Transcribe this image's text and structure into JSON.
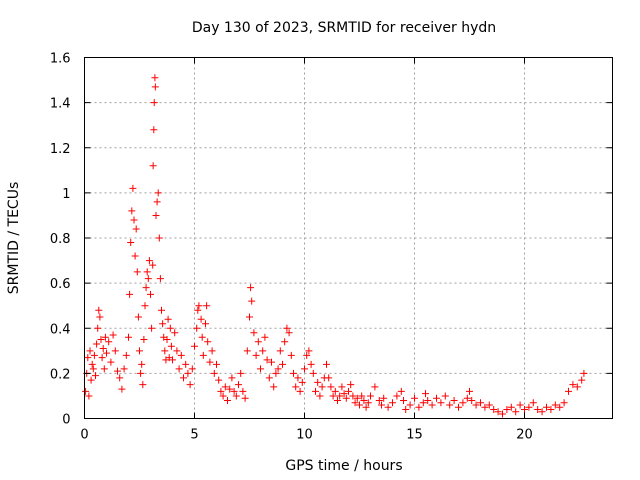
{
  "chart_data": {
    "type": "scatter",
    "title": "Day 130 of 2023, SRMTID for receiver hydn",
    "xlabel": "GPS time / hours",
    "ylabel": "SRMTID / TECUs",
    "xlim": [
      0,
      24
    ],
    "ylim": [
      0,
      1.6
    ],
    "xticks": [
      "0",
      "5",
      "10",
      "15",
      "20"
    ],
    "yticks": [
      "0",
      "0.2",
      "0.4",
      "0.6",
      "0.8",
      "1",
      "1.2",
      "1.4",
      "1.6"
    ],
    "grid": true,
    "marker": "plus",
    "color": "#ff0000",
    "series": [
      {
        "name": "SRMTID",
        "points": [
          [
            0.05,
            0.12
          ],
          [
            0.1,
            0.2
          ],
          [
            0.15,
            0.27
          ],
          [
            0.2,
            0.1
          ],
          [
            0.25,
            0.3
          ],
          [
            0.3,
            0.17
          ],
          [
            0.35,
            0.24
          ],
          [
            0.4,
            0.22
          ],
          [
            0.45,
            0.28
          ],
          [
            0.5,
            0.19
          ],
          [
            0.55,
            0.33
          ],
          [
            0.6,
            0.4
          ],
          [
            0.65,
            0.48
          ],
          [
            0.7,
            0.45
          ],
          [
            0.75,
            0.35
          ],
          [
            0.8,
            0.27
          ],
          [
            0.85,
            0.31
          ],
          [
            0.9,
            0.22
          ],
          [
            0.95,
            0.36
          ],
          [
            1.0,
            0.29
          ],
          [
            1.1,
            0.34
          ],
          [
            1.2,
            0.25
          ],
          [
            1.3,
            0.37
          ],
          [
            1.4,
            0.3
          ],
          [
            1.5,
            0.21
          ],
          [
            1.6,
            0.18
          ],
          [
            1.7,
            0.13
          ],
          [
            1.8,
            0.22
          ],
          [
            1.9,
            0.28
          ],
          [
            2.0,
            0.36
          ],
          [
            2.05,
            0.55
          ],
          [
            2.1,
            0.78
          ],
          [
            2.15,
            0.92
          ],
          [
            2.2,
            1.02
          ],
          [
            2.25,
            0.88
          ],
          [
            2.3,
            0.72
          ],
          [
            2.35,
            0.84
          ],
          [
            2.4,
            0.65
          ],
          [
            2.45,
            0.45
          ],
          [
            2.5,
            0.3
          ],
          [
            2.55,
            0.2
          ],
          [
            2.6,
            0.24
          ],
          [
            2.65,
            0.15
          ],
          [
            2.7,
            0.35
          ],
          [
            2.75,
            0.5
          ],
          [
            2.8,
            0.58
          ],
          [
            2.85,
            0.65
          ],
          [
            2.9,
            0.62
          ],
          [
            2.95,
            0.7
          ],
          [
            3.0,
            0.55
          ],
          [
            3.05,
            0.4
          ],
          [
            3.1,
            0.68
          ],
          [
            3.12,
            1.12
          ],
          [
            3.15,
            1.28
          ],
          [
            3.17,
            1.4
          ],
          [
            3.2,
            1.51
          ],
          [
            3.22,
            1.47
          ],
          [
            3.25,
            0.9
          ],
          [
            3.3,
            0.96
          ],
          [
            3.35,
            1.0
          ],
          [
            3.4,
            0.8
          ],
          [
            3.45,
            0.62
          ],
          [
            3.5,
            0.48
          ],
          [
            3.55,
            0.42
          ],
          [
            3.6,
            0.36
          ],
          [
            3.65,
            0.3
          ],
          [
            3.7,
            0.26
          ],
          [
            3.75,
            0.35
          ],
          [
            3.8,
            0.44
          ],
          [
            3.85,
            0.27
          ],
          [
            3.9,
            0.4
          ],
          [
            3.95,
            0.32
          ],
          [
            4.0,
            0.26
          ],
          [
            4.1,
            0.38
          ],
          [
            4.2,
            0.3
          ],
          [
            4.3,
            0.22
          ],
          [
            4.4,
            0.28
          ],
          [
            4.5,
            0.18
          ],
          [
            4.6,
            0.24
          ],
          [
            4.7,
            0.2
          ],
          [
            4.8,
            0.15
          ],
          [
            4.9,
            0.22
          ],
          [
            5.0,
            0.32
          ],
          [
            5.1,
            0.4
          ],
          [
            5.15,
            0.48
          ],
          [
            5.2,
            0.5
          ],
          [
            5.3,
            0.44
          ],
          [
            5.35,
            0.36
          ],
          [
            5.4,
            0.28
          ],
          [
            5.5,
            0.42
          ],
          [
            5.55,
            0.5
          ],
          [
            5.6,
            0.34
          ],
          [
            5.7,
            0.25
          ],
          [
            5.8,
            0.3
          ],
          [
            5.9,
            0.2
          ],
          [
            6.0,
            0.24
          ],
          [
            6.1,
            0.17
          ],
          [
            6.2,
            0.12
          ],
          [
            6.3,
            0.1
          ],
          [
            6.4,
            0.14
          ],
          [
            6.5,
            0.08
          ],
          [
            6.6,
            0.13
          ],
          [
            6.7,
            0.18
          ],
          [
            6.8,
            0.12
          ],
          [
            6.9,
            0.1
          ],
          [
            7.0,
            0.15
          ],
          [
            7.1,
            0.2
          ],
          [
            7.2,
            0.12
          ],
          [
            7.3,
            0.09
          ],
          [
            7.4,
            0.3
          ],
          [
            7.5,
            0.45
          ],
          [
            7.55,
            0.58
          ],
          [
            7.6,
            0.52
          ],
          [
            7.7,
            0.38
          ],
          [
            7.8,
            0.28
          ],
          [
            7.9,
            0.34
          ],
          [
            8.0,
            0.22
          ],
          [
            8.1,
            0.3
          ],
          [
            8.2,
            0.36
          ],
          [
            8.3,
            0.26
          ],
          [
            8.4,
            0.18
          ],
          [
            8.5,
            0.25
          ],
          [
            8.6,
            0.14
          ],
          [
            8.7,
            0.2
          ],
          [
            8.8,
            0.22
          ],
          [
            8.9,
            0.3
          ],
          [
            9.0,
            0.24
          ],
          [
            9.1,
            0.34
          ],
          [
            9.2,
            0.4
          ],
          [
            9.3,
            0.38
          ],
          [
            9.4,
            0.28
          ],
          [
            9.5,
            0.2
          ],
          [
            9.6,
            0.14
          ],
          [
            9.7,
            0.18
          ],
          [
            9.8,
            0.12
          ],
          [
            9.9,
            0.16
          ],
          [
            10.0,
            0.22
          ],
          [
            10.1,
            0.28
          ],
          [
            10.2,
            0.3
          ],
          [
            10.3,
            0.24
          ],
          [
            10.4,
            0.2
          ],
          [
            10.5,
            0.12
          ],
          [
            10.6,
            0.16
          ],
          [
            10.7,
            0.1
          ],
          [
            10.8,
            0.14
          ],
          [
            10.9,
            0.18
          ],
          [
            11.0,
            0.24
          ],
          [
            11.1,
            0.18
          ],
          [
            11.2,
            0.14
          ],
          [
            11.3,
            0.1
          ],
          [
            11.4,
            0.12
          ],
          [
            11.5,
            0.08
          ],
          [
            11.6,
            0.1
          ],
          [
            11.7,
            0.14
          ],
          [
            11.8,
            0.11
          ],
          [
            11.9,
            0.09
          ],
          [
            12.0,
            0.12
          ],
          [
            12.1,
            0.15
          ],
          [
            12.2,
            0.1
          ],
          [
            12.3,
            0.07
          ],
          [
            12.4,
            0.09
          ],
          [
            12.5,
            0.06
          ],
          [
            12.6,
            0.1
          ],
          [
            12.7,
            0.08
          ],
          [
            12.8,
            0.05
          ],
          [
            12.9,
            0.07
          ],
          [
            13.0,
            0.1
          ],
          [
            13.2,
            0.14
          ],
          [
            13.4,
            0.08
          ],
          [
            13.5,
            0.06
          ],
          [
            13.6,
            0.09
          ],
          [
            13.8,
            0.05
          ],
          [
            14.0,
            0.07
          ],
          [
            14.2,
            0.1
          ],
          [
            14.4,
            0.12
          ],
          [
            14.5,
            0.08
          ],
          [
            14.6,
            0.04
          ],
          [
            14.8,
            0.06
          ],
          [
            15.0,
            0.09
          ],
          [
            15.2,
            0.05
          ],
          [
            15.4,
            0.07
          ],
          [
            15.5,
            0.11
          ],
          [
            15.6,
            0.08
          ],
          [
            15.8,
            0.06
          ],
          [
            16.0,
            0.09
          ],
          [
            16.2,
            0.07
          ],
          [
            16.4,
            0.1
          ],
          [
            16.6,
            0.06
          ],
          [
            16.8,
            0.08
          ],
          [
            17.0,
            0.05
          ],
          [
            17.2,
            0.07
          ],
          [
            17.4,
            0.09
          ],
          [
            17.5,
            0.12
          ],
          [
            17.6,
            0.08
          ],
          [
            17.8,
            0.06
          ],
          [
            18.0,
            0.07
          ],
          [
            18.2,
            0.05
          ],
          [
            18.4,
            0.06
          ],
          [
            18.6,
            0.04
          ],
          [
            18.8,
            0.03
          ],
          [
            19.0,
            0.02
          ],
          [
            19.2,
            0.04
          ],
          [
            19.4,
            0.05
          ],
          [
            19.6,
            0.03
          ],
          [
            19.8,
            0.06
          ],
          [
            20.0,
            0.04
          ],
          [
            20.2,
            0.05
          ],
          [
            20.4,
            0.07
          ],
          [
            20.6,
            0.04
          ],
          [
            20.8,
            0.03
          ],
          [
            21.0,
            0.05
          ],
          [
            21.2,
            0.04
          ],
          [
            21.4,
            0.06
          ],
          [
            21.6,
            0.05
          ],
          [
            21.8,
            0.07
          ],
          [
            22.0,
            0.12
          ],
          [
            22.2,
            0.15
          ],
          [
            22.4,
            0.14
          ],
          [
            22.6,
            0.17
          ],
          [
            22.7,
            0.2
          ]
        ]
      }
    ]
  }
}
